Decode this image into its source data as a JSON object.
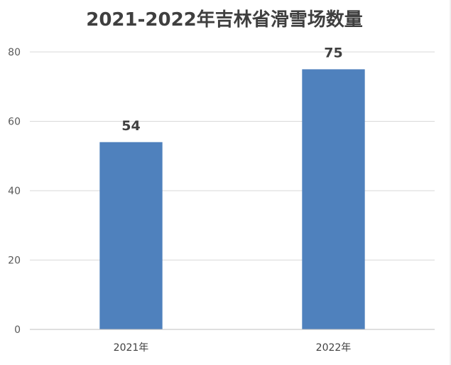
{
  "chart_data": {
    "type": "bar",
    "title": "2021-2022年吉林省滑雪场数量",
    "categories": [
      "2021年",
      "2022年"
    ],
    "values": [
      54,
      75
    ],
    "data_labels": [
      "54",
      "75"
    ],
    "y_ticks": [
      "0",
      "20",
      "40",
      "60",
      "80"
    ],
    "ylim": [
      0,
      80
    ],
    "xlabel": "",
    "ylabel": "",
    "grid": true,
    "legend": "none",
    "bar_color": "#4f81bd"
  }
}
